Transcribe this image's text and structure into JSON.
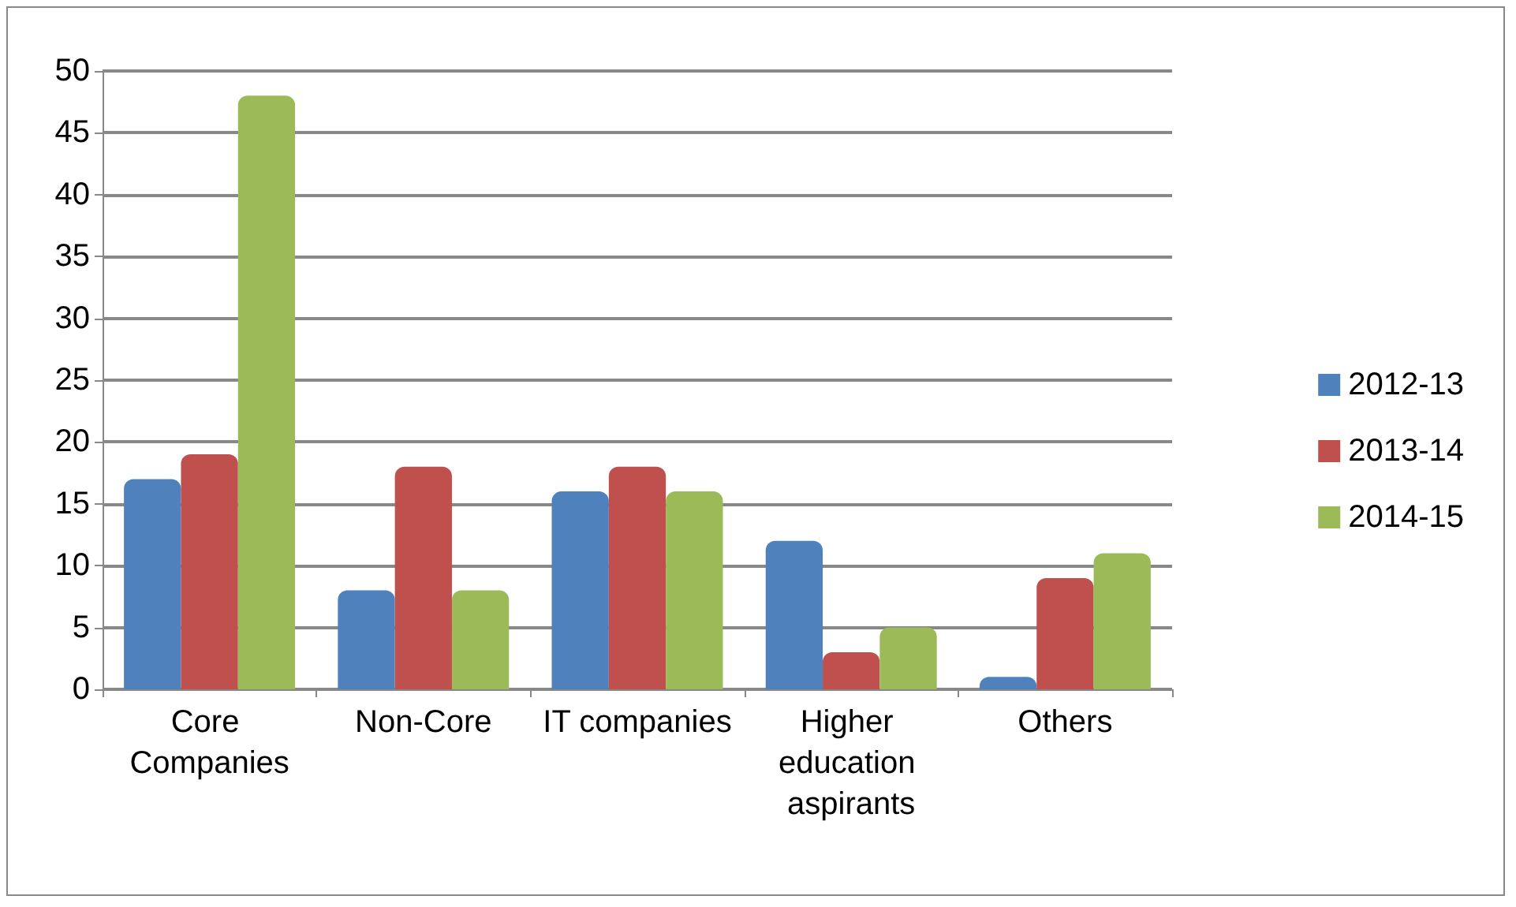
{
  "chart_data": {
    "type": "bar",
    "categories": [
      "Core Companies",
      "Non-Core",
      "IT companies",
      "Higher education aspirants",
      "Others"
    ],
    "series": [
      {
        "name": "2012-13",
        "color": "#4f81bd",
        "values": [
          17,
          8,
          16,
          12,
          1
        ]
      },
      {
        "name": "2013-14",
        "color": "#c0504d",
        "values": [
          19,
          18,
          18,
          3,
          9
        ]
      },
      {
        "name": "2014-15",
        "color": "#9bbb59",
        "values": [
          48,
          8,
          16,
          5,
          11
        ]
      }
    ],
    "ylim": [
      0,
      50
    ],
    "yticks": [
      0,
      5,
      10,
      15,
      20,
      25,
      30,
      35,
      40,
      45,
      50
    ],
    "grid": "y",
    "legend": "right"
  }
}
